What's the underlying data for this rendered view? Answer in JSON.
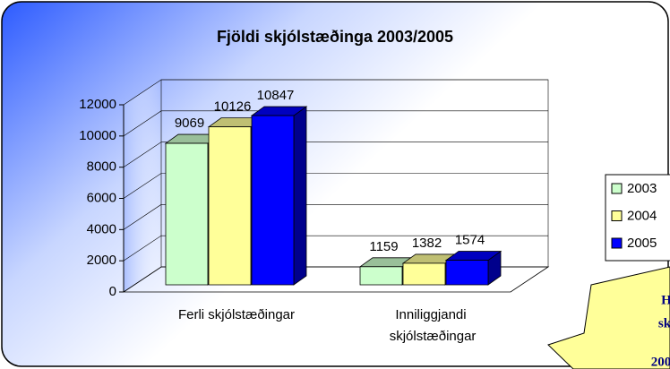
{
  "chart_data": {
    "type": "bar3d",
    "title": "Fjöldi skjólstæðinga 2003/2005",
    "categories": [
      "Ferli skjólstæðingar",
      "Inniliggjandi skjólstæðingar"
    ],
    "series": [
      {
        "name": "2003",
        "color": "#ccffcc",
        "values": [
          9069,
          1159
        ]
      },
      {
        "name": "2004",
        "color": "#ffff99",
        "values": [
          10126,
          1382
        ]
      },
      {
        "name": "2005",
        "color": "#0000ff",
        "values": [
          10847,
          1574
        ]
      }
    ],
    "ylim": [
      0,
      12000
    ],
    "yticks": [
      0,
      2000,
      4000,
      6000,
      8000,
      10000,
      12000
    ],
    "grid": true,
    "legend": "right",
    "annotations": [
      "H",
      "sk",
      "200"
    ]
  }
}
